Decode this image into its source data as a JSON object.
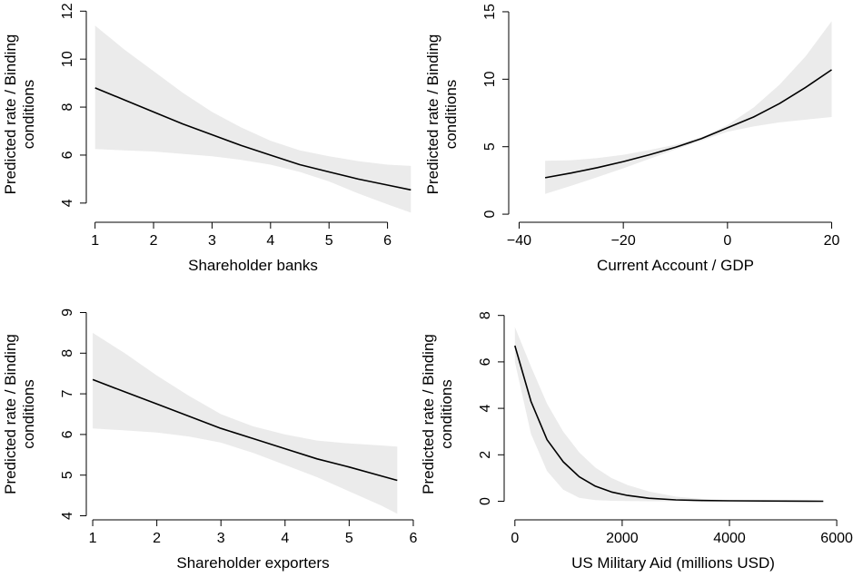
{
  "chart_data": [
    {
      "type": "line",
      "xlabel": "Shareholder banks",
      "ylabel_lines": [
        "Predicted rate / Binding",
        "conditions"
      ],
      "xlim": [
        0.85,
        6.55
      ],
      "ylim": [
        3.2,
        12.2
      ],
      "xticks": [
        1,
        2,
        3,
        4,
        5,
        6
      ],
      "yticks": [
        4,
        6,
        8,
        10,
        12
      ],
      "series": [
        {
          "x": [
            1,
            1.5,
            2,
            2.5,
            3,
            3.5,
            4,
            4.5,
            5,
            5.5,
            6,
            6.4
          ],
          "y": [
            8.8,
            8.3,
            7.8,
            7.3,
            6.85,
            6.4,
            6.0,
            5.6,
            5.3,
            5.0,
            4.75,
            4.55
          ],
          "lower": [
            6.25,
            6.2,
            6.15,
            6.05,
            5.95,
            5.8,
            5.6,
            5.3,
            4.9,
            4.4,
            3.95,
            3.6
          ],
          "upper": [
            11.4,
            10.4,
            9.5,
            8.6,
            7.8,
            7.15,
            6.6,
            6.2,
            5.95,
            5.75,
            5.6,
            5.55
          ]
        }
      ]
    },
    {
      "type": "line",
      "xlabel": "Current Account / GDP",
      "ylabel_lines": [
        "Predicted rate / Binding",
        "conditions"
      ],
      "xlim": [
        -42,
        22
      ],
      "ylim": [
        -0.6,
        15.4
      ],
      "xticks": [
        -40,
        -20,
        0,
        20
      ],
      "yticks": [
        0,
        5,
        10,
        15
      ],
      "series": [
        {
          "x": [
            -35,
            -30,
            -25,
            -20,
            -15,
            -10,
            -5,
            0,
            5,
            10,
            15,
            20
          ],
          "y": [
            2.7,
            3.05,
            3.45,
            3.9,
            4.4,
            4.95,
            5.6,
            6.4,
            7.2,
            8.2,
            9.4,
            10.7
          ],
          "lower": [
            1.5,
            2.1,
            2.75,
            3.4,
            4.1,
            4.8,
            5.45,
            6.1,
            6.5,
            6.8,
            7.0,
            7.2
          ],
          "upper": [
            3.95,
            4.0,
            4.15,
            4.4,
            4.75,
            5.15,
            5.7,
            6.6,
            7.9,
            9.6,
            11.7,
            14.3
          ]
        }
      ]
    },
    {
      "type": "line",
      "xlabel": "Shareholder exporters",
      "ylabel_lines": [
        "Predicted rate / Binding",
        "conditions"
      ],
      "xlim": [
        0.9,
        6.1
      ],
      "ylim": [
        3.9,
        9.1
      ],
      "xticks": [
        1,
        2,
        3,
        4,
        5,
        6
      ],
      "yticks": [
        4,
        5,
        6,
        7,
        8,
        9
      ],
      "series": [
        {
          "x": [
            1,
            1.5,
            2,
            2.5,
            3,
            3.5,
            4,
            4.5,
            5,
            5.5,
            5.75
          ],
          "y": [
            7.35,
            7.05,
            6.75,
            6.45,
            6.15,
            5.9,
            5.65,
            5.4,
            5.2,
            4.98,
            4.87
          ],
          "lower": [
            6.15,
            6.1,
            6.05,
            5.95,
            5.8,
            5.55,
            5.25,
            4.95,
            4.6,
            4.25,
            4.05
          ],
          "upper": [
            8.5,
            8.0,
            7.45,
            6.95,
            6.5,
            6.2,
            6.0,
            5.85,
            5.78,
            5.73,
            5.7
          ]
        }
      ]
    },
    {
      "type": "line",
      "xlabel": "US Military Aid (millions USD)",
      "ylabel_lines": [
        "Predicted rate / Binding",
        "conditions"
      ],
      "xlim": [
        -200,
        6100
      ],
      "ylim": [
        -0.8,
        8.3
      ],
      "xticks": [
        0,
        2000,
        4000,
        6000
      ],
      "yticks": [
        0,
        2,
        4,
        6,
        8
      ],
      "series": [
        {
          "x": [
            0,
            300,
            600,
            900,
            1200,
            1500,
            1800,
            2100,
            2500,
            3000,
            3500,
            4000,
            5000,
            5750
          ],
          "y": [
            6.7,
            4.3,
            2.65,
            1.7,
            1.05,
            0.65,
            0.4,
            0.25,
            0.13,
            0.06,
            0.03,
            0.02,
            0.01,
            0.0
          ],
          "lower": [
            6.0,
            2.9,
            1.3,
            0.5,
            0.15,
            0.05,
            0.02,
            0.01,
            0.0,
            0.0,
            0.0,
            0.0,
            0.0,
            0.0
          ],
          "upper": [
            7.5,
            5.8,
            4.2,
            3.0,
            2.1,
            1.45,
            1.0,
            0.7,
            0.42,
            0.2,
            0.1,
            0.05,
            0.02,
            0.01
          ]
        }
      ]
    }
  ],
  "colors": {
    "line": "#000000",
    "band": "#ebebeb",
    "axis": "#000000",
    "text": "#000000"
  }
}
